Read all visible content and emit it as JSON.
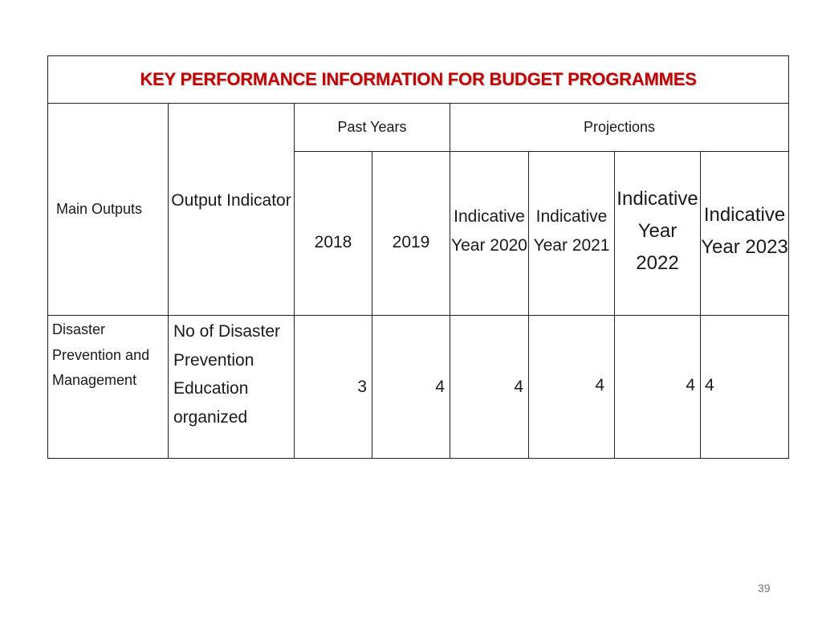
{
  "title": "KEY PERFORMANCE INFORMATION FOR BUDGET PROGRAMMES",
  "headers": {
    "main_outputs": "Main Outputs",
    "output_indicator": "Output Indicator",
    "past_years": "Past Years",
    "projections": "Projections",
    "years": [
      "2018",
      "2019",
      "Indicative Year 2020",
      "Indicative Year 2021",
      "Indicative Year 2022",
      "Indicative Year 2023"
    ]
  },
  "rows": [
    {
      "main_output": "Disaster Prevention and Management",
      "output_indicator": "No of Disaster Prevention Education organized",
      "values": [
        "3",
        "4",
        "4",
        "4",
        "4",
        "4"
      ]
    }
  ],
  "page_number": "39",
  "colors": {
    "title": "#c00000",
    "border": "#222222"
  }
}
